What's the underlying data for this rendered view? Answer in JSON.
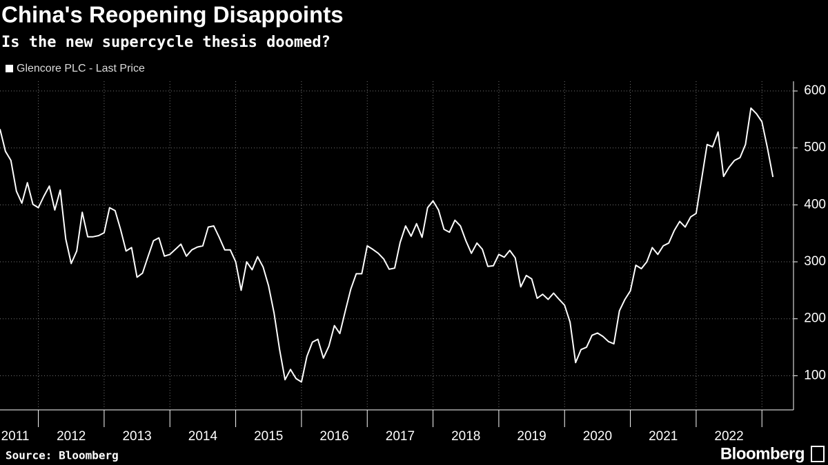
{
  "chart_data": {
    "type": "line",
    "title": "China's Reopening Disappoints",
    "subtitle": "Is the new supercycle thesis doomed?",
    "source": "Source: Bloomberg",
    "logo": "Bloomberg",
    "series": [
      {
        "name": "Glencore PLC - Last Price",
        "color": "#ffffff",
        "values": [
          533,
          494,
          478,
          424,
          403,
          439,
          401,
          395,
          415,
          433,
          391,
          426,
          340,
          297,
          319,
          387,
          344,
          344,
          346,
          351,
          395,
          390,
          357,
          319,
          325,
          273,
          280,
          309,
          337,
          342,
          310,
          313,
          322,
          331,
          310,
          321,
          326,
          328,
          361,
          363,
          343,
          321,
          321,
          300,
          250,
          300,
          286,
          309,
          291,
          258,
          210,
          146,
          93,
          111,
          95,
          89,
          134,
          159,
          164,
          131,
          152,
          188,
          174,
          214,
          252,
          279,
          279,
          328,
          322,
          315,
          305,
          287,
          289,
          334,
          363,
          345,
          367,
          343,
          395,
          407,
          391,
          357,
          352,
          373,
          363,
          337,
          315,
          333,
          322,
          292,
          293,
          313,
          308,
          320,
          307,
          256,
          276,
          270,
          236,
          243,
          234,
          245,
          234,
          224,
          194,
          123,
          146,
          150,
          171,
          175,
          169,
          160,
          156,
          214,
          234,
          249,
          294,
          288,
          300,
          325,
          313,
          328,
          333,
          355,
          371,
          361,
          379,
          385,
          445,
          506,
          502,
          528,
          450,
          466,
          478,
          483,
          506,
          570,
          560,
          546,
          500,
          449
        ]
      }
    ],
    "x": [
      2011.417,
      2011.5,
      2011.583,
      2011.667,
      2011.75,
      2011.833,
      2011.917,
      2012,
      2012.083,
      2012.167,
      2012.25,
      2012.333,
      2012.417,
      2012.5,
      2012.583,
      2012.667,
      2012.75,
      2012.833,
      2012.917,
      2013,
      2013.083,
      2013.167,
      2013.25,
      2013.333,
      2013.417,
      2013.5,
      2013.583,
      2013.667,
      2013.75,
      2013.833,
      2013.917,
      2014,
      2014.083,
      2014.167,
      2014.25,
      2014.333,
      2014.417,
      2014.5,
      2014.583,
      2014.667,
      2014.75,
      2014.833,
      2014.917,
      2015,
      2015.083,
      2015.167,
      2015.25,
      2015.333,
      2015.417,
      2015.5,
      2015.583,
      2015.667,
      2015.75,
      2015.833,
      2015.917,
      2016,
      2016.083,
      2016.167,
      2016.25,
      2016.333,
      2016.417,
      2016.5,
      2016.583,
      2016.667,
      2016.75,
      2016.833,
      2016.917,
      2017,
      2017.083,
      2017.167,
      2017.25,
      2017.333,
      2017.417,
      2017.5,
      2017.583,
      2017.667,
      2017.75,
      2017.833,
      2017.917,
      2018,
      2018.083,
      2018.167,
      2018.25,
      2018.333,
      2018.417,
      2018.5,
      2018.583,
      2018.667,
      2018.75,
      2018.833,
      2018.917,
      2019,
      2019.083,
      2019.167,
      2019.25,
      2019.333,
      2019.417,
      2019.5,
      2019.583,
      2019.667,
      2019.75,
      2019.833,
      2019.917,
      2020,
      2020.083,
      2020.167,
      2020.25,
      2020.333,
      2020.417,
      2020.5,
      2020.583,
      2020.667,
      2020.75,
      2020.833,
      2020.917,
      2021,
      2021.083,
      2021.167,
      2021.25,
      2021.333,
      2021.417,
      2021.5,
      2021.583,
      2021.667,
      2021.75,
      2021.833,
      2021.917,
      2022,
      2022.083,
      2022.167,
      2022.25,
      2022.333,
      2022.417,
      2022.5,
      2022.583,
      2022.667,
      2022.75,
      2022.833,
      2022.917,
      2023,
      2023.083,
      2023.167
    ],
    "xlim": [
      2011.417,
      2023.48
    ],
    "xticks": [
      2012,
      2013,
      2014,
      2015,
      2016,
      2017,
      2018,
      2019,
      2020,
      2021,
      2022,
      2023
    ],
    "year_labels": [
      2011,
      2012,
      2013,
      2014,
      2015,
      2016,
      2017,
      2018,
      2019,
      2020,
      2021,
      2022
    ],
    "ylim": [
      40,
      617
    ],
    "yticks": [
      100,
      200,
      300,
      400,
      500,
      600
    ],
    "grid": true
  }
}
